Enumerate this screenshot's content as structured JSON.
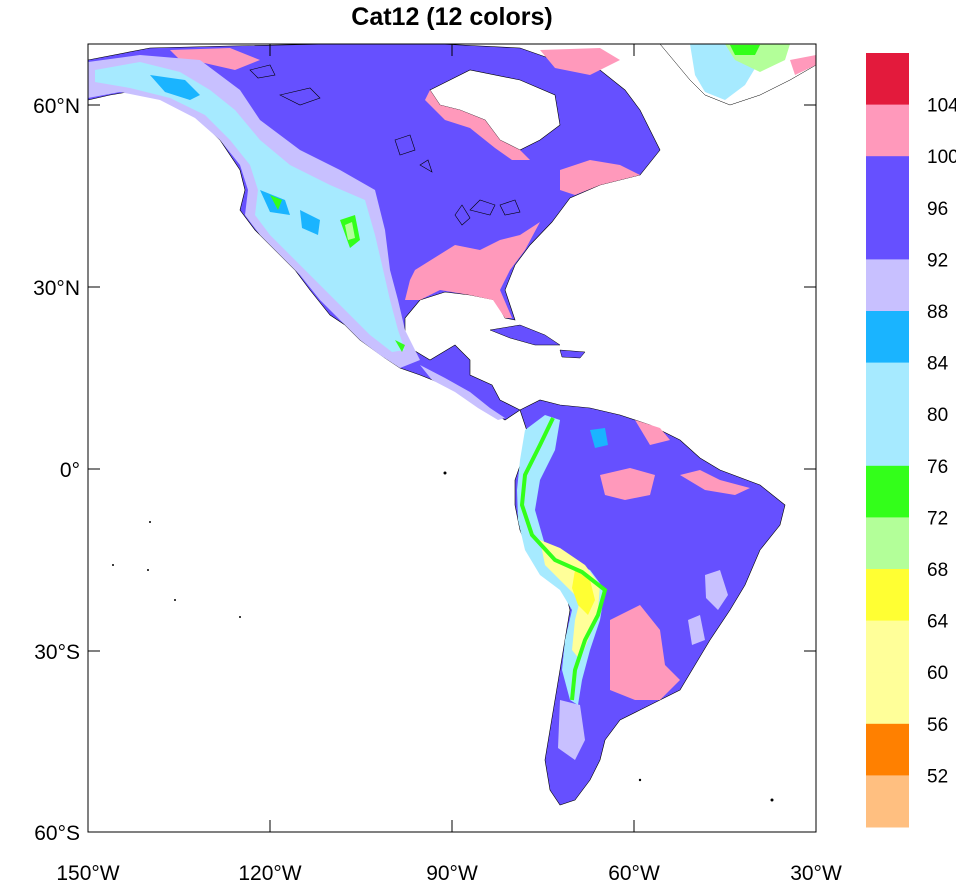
{
  "title": "Cat12 (12 colors)",
  "map": {
    "y_ticks": [
      "60°N",
      "30°N",
      "0°",
      "30°S",
      "60°S"
    ],
    "x_ticks": [
      "150°W",
      "120°W",
      "90°W",
      "60°W",
      "30°W"
    ],
    "extent": {
      "lon": [
        -150,
        -30
      ],
      "lat": [
        -60,
        70
      ]
    }
  },
  "colorbar": {
    "labels": [
      "104",
      "100",
      "96",
      "92",
      "88",
      "84",
      "80",
      "76",
      "72",
      "68",
      "64",
      "60",
      "56",
      "52"
    ],
    "colors_top_to_bottom": [
      "#E31A3C",
      "#FF99BB",
      "#6650FF",
      "#6650FF",
      "#C8C0FF",
      "#1AB4FF",
      "#A6EAFF",
      "#33FF1A",
      "#B3FF99",
      "#FFFF33",
      "#FFFF99",
      "#FFFF99",
      "#FF8000",
      "#FFBF80"
    ]
  },
  "colors": {
    "ocean": "#FFFFFF",
    "land_main": "#6650FF",
    "land_pink": "#FF99BB",
    "land_lavender": "#C8C0FF",
    "land_lightblue": "#A6EAFF",
    "land_blue": "#1AB4FF",
    "land_green": "#33FF1A",
    "land_lightgreen": "#B3FF99",
    "land_yellow": "#FFFF33",
    "land_paleyellow": "#FFFF99"
  }
}
